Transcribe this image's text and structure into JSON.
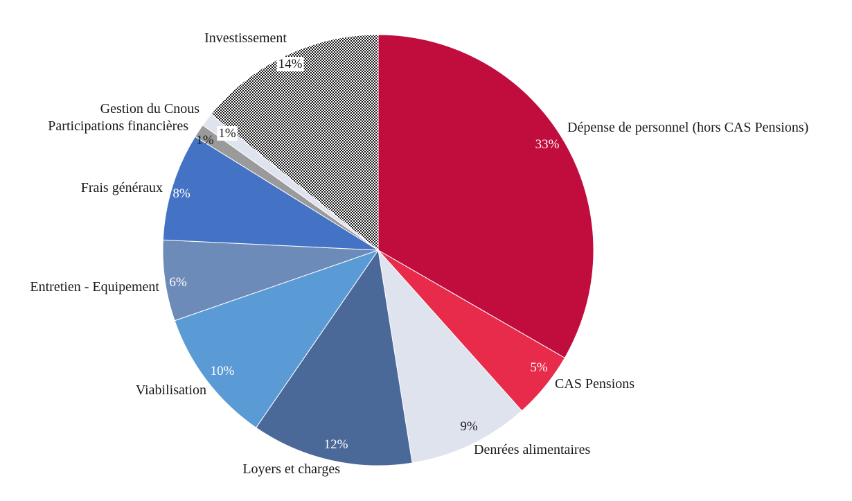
{
  "chart_data": {
    "type": "pie",
    "start_angle_deg": 0,
    "direction": "clockwise",
    "slices": [
      {
        "label": "Dépense de personnel (hors CAS Pensions)",
        "value": 33,
        "value_label": "33%",
        "color": "#c00d3e",
        "pattern": "solid",
        "value_color": "#ffffff"
      },
      {
        "label": "CAS Pensions",
        "value": 5,
        "value_label": "5%",
        "color": "#e82b4b",
        "pattern": "solid",
        "value_color": "#ffffff"
      },
      {
        "label": "Denrées alimentaires",
        "value": 9,
        "value_label": "9%",
        "color": "#dfe3ee",
        "pattern": "solid",
        "value_color": "#1a1a1a"
      },
      {
        "label": "Loyers et charges",
        "value": 12,
        "value_label": "12%",
        "color": "#4a6999",
        "pattern": "solid",
        "value_color": "#ffffff"
      },
      {
        "label": "Viabilisation",
        "value": 10,
        "value_label": "10%",
        "color": "#5b9bd5",
        "pattern": "solid",
        "value_color": "#ffffff"
      },
      {
        "label": "Entretien - Equipement",
        "value": 6,
        "value_label": "6%",
        "color": "#6d8bb8",
        "pattern": "solid",
        "value_color": "#ffffff"
      },
      {
        "label": "Frais généraux",
        "value": 8,
        "value_label": "8%",
        "color": "#4472c4",
        "pattern": "solid",
        "value_color": "#ffffff"
      },
      {
        "label": "Participations financières",
        "value": 1,
        "value_label": "1%",
        "color": "#9a9a9a",
        "pattern": "solid",
        "value_color": "#1a1a1a"
      },
      {
        "label": "Gestion du Cnous",
        "value": 1,
        "value_label": "1%",
        "color": "#dfe3ee",
        "pattern": "solid",
        "value_color": "#1a1a1a"
      },
      {
        "label": "Investissement",
        "value": 14,
        "value_label": "14%",
        "color": "#000000",
        "pattern": "dots",
        "value_color": "#1a1a1a"
      }
    ]
  }
}
